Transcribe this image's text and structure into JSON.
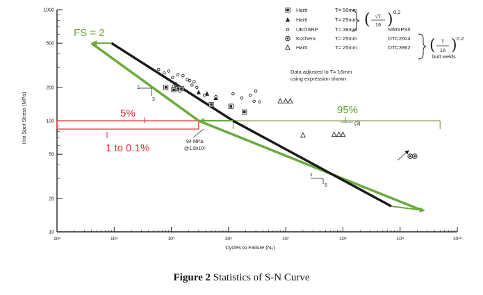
{
  "caption": {
    "label": "Figure 2",
    "text": "Statistics of S-N Curve"
  },
  "chart_data": {
    "type": "scatter",
    "xlabel": "Cycles to Failure (N₀)",
    "ylabel": "Hot Spot Stress (MPa)",
    "x_scale": "log",
    "y_scale": "log",
    "xlim": [
      1000,
      10000000000
    ],
    "ylim": [
      10,
      1000
    ],
    "x_ticks": [
      "10³",
      "10⁴",
      "10⁵",
      "10⁶",
      "10⁷",
      "10⁸",
      "10⁹",
      "10¹⁰"
    ],
    "y_ticks": [
      "10",
      "20",
      "50",
      "100",
      "200",
      "500",
      "1000"
    ],
    "legend": {
      "placement": "top-right",
      "entries": [
        {
          "symbol": "filled-square",
          "name": "Hartt",
          "thickness": "T= 50mm"
        },
        {
          "symbol": "filled-triangle",
          "name": "Hartt",
          "thickness": "T= 25mm"
        },
        {
          "symbol": "small-dot",
          "name": "UKOSRP",
          "thickness": "T= 38mm",
          "ref": "SIMSPS5"
        },
        {
          "symbol": "target-circle",
          "name": "Kochera",
          "thickness": "T= 25mm",
          "ref": "OTC2604"
        },
        {
          "symbol": "open-triangle",
          "name": "Hartt",
          "thickness": "T= 25mm",
          "ref": "OTC3962"
        }
      ],
      "formula1_num": "√T",
      "formula1_den": "16",
      "formula1_exp": "0.2",
      "formula2_num": "T",
      "formula2_den": "16",
      "formula2_exp": "0.2",
      "formula2_note": "butt welds"
    },
    "note_line1": "Data adjusted to T= 16mm",
    "note_line2": "using expression shown",
    "mean_curve": {
      "color": "#1a1a1a",
      "points": [
        [
          9000,
          500
        ],
        [
          1200000,
          100
        ],
        [
          700000000,
          17
        ]
      ]
    },
    "design_curve": {
      "color": "#6aaa3a",
      "label": "FS = 2",
      "points": [
        [
          4000,
          500
        ],
        [
          300000,
          100
        ],
        [
          2500000000,
          15.5
        ]
      ]
    },
    "horizontal_ref": {
      "y": 100,
      "from_x": 1000,
      "to_x": 5000000000
    },
    "slope_labels": [
      {
        "text_run": "1",
        "text_rise": "3"
      },
      {
        "text_run": "1",
        "text_rise": "5"
      }
    ],
    "annotation_94": {
      "line1": "94 MPa",
      "line2": "@1.8x10⁶"
    },
    "pct_left": {
      "top": "5%",
      "bottom": "1 to 0.1%",
      "color": "#e03030"
    },
    "pct_right": {
      "top": "95%",
      "color": "#5a9a30"
    },
    "runout_label": "(3)",
    "series": [
      {
        "name": "Hartt",
        "marker": "filled-square",
        "x": [
          80000,
          110000,
          130000,
          150000,
          500000,
          1100000,
          1900000
        ],
        "y": [
          200,
          190,
          195,
          195,
          140,
          135,
          120
        ]
      },
      {
        "name": "Hartt",
        "marker": "filled-triangle",
        "x": [
          120000,
          300000,
          420000,
          600000
        ],
        "y": [
          215,
          180,
          175,
          160
        ]
      },
      {
        "name": "UKOSRP",
        "marker": "small-dot",
        "x": [
          60000,
          75000,
          90000,
          105000,
          130000,
          160000,
          190000,
          210000,
          230000,
          250000,
          280000,
          110000,
          140000,
          380000,
          600000,
          1200000,
          1700000,
          3000000,
          2400000,
          2800000,
          3500000
        ],
        "y": [
          290,
          270,
          280,
          245,
          260,
          255,
          235,
          230,
          210,
          225,
          200,
          205,
          185,
          170,
          165,
          175,
          160,
          185,
          170,
          150,
          148
        ]
      },
      {
        "name": "Kochera",
        "marker": "target-circle",
        "x": [
          1500000000,
          1800000000
        ],
        "y": [
          48,
          48
        ]
      },
      {
        "name": "Hartt",
        "marker": "open-triangle",
        "x": [
          8000000,
          10000000,
          12000000,
          20000000,
          70000000,
          85000000,
          100000000
        ],
        "y": [
          150,
          150,
          150,
          74,
          75,
          75,
          75
        ]
      }
    ]
  }
}
